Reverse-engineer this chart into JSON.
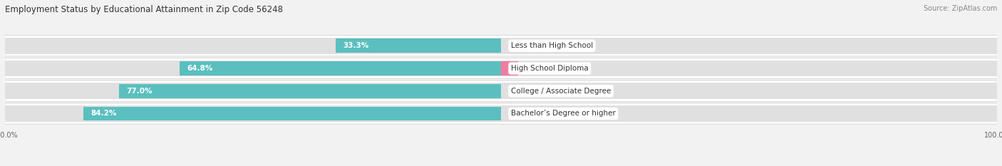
{
  "title": "Employment Status by Educational Attainment in Zip Code 56248",
  "source": "Source: ZipAtlas.com",
  "categories": [
    "Less than High School",
    "High School Diploma",
    "College / Associate Degree",
    "Bachelor’s Degree or higher"
  ],
  "labor_force": [
    33.3,
    64.8,
    77.0,
    84.2
  ],
  "unemployed": [
    0.0,
    3.5,
    0.0,
    0.0
  ],
  "labor_force_color": "#5bbfbf",
  "unemployed_color": "#f07ca0",
  "bar_height": 0.62,
  "background_color": "#f2f2f2",
  "bar_bg_color": "#e0e0e0",
  "row_bg_color": "#e8e8e8",
  "title_fontsize": 8.5,
  "label_fontsize": 7.5,
  "value_fontsize": 7.5,
  "axis_label_fontsize": 7,
  "legend_fontsize": 7.5,
  "source_fontsize": 7
}
